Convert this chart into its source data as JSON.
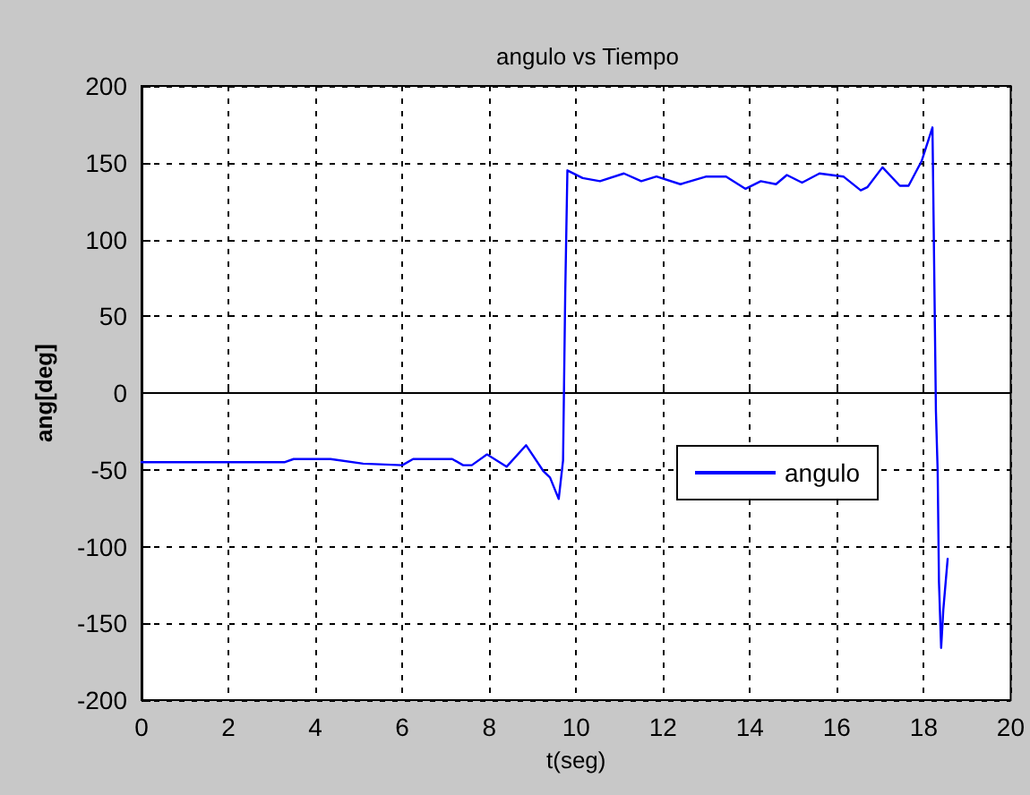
{
  "chart_data": {
    "type": "line",
    "title": "angulo vs Tiempo",
    "xlabel": "t(seg)",
    "ylabel": "ang[deg]",
    "xlim": [
      0,
      20
    ],
    "xticks": [
      0,
      2,
      4,
      6,
      8,
      10,
      12,
      14,
      16,
      18,
      20
    ],
    "ylim": [
      -200,
      200
    ],
    "yticks": [
      -200,
      -150,
      -100,
      -50,
      0,
      50,
      100,
      150,
      200
    ],
    "grid": true,
    "legend": "right",
    "line_style": "solid",
    "marker": "none",
    "series": [
      {
        "name": "angulo",
        "color": "#0000ff",
        "x": [
          0,
          3.3,
          3.5,
          4.35,
          5.1,
          6,
          6.25,
          7.15,
          7.4,
          7.6,
          7.95,
          8.4,
          8.85,
          9.25,
          9.4,
          9.6,
          9.7,
          9.75,
          9.8,
          10.15,
          10.55,
          11.1,
          11.5,
          11.85,
          12.4,
          13.0,
          13.45,
          13.9,
          14.25,
          14.6,
          14.85,
          15.2,
          15.6,
          16.15,
          16.55,
          16.7,
          17.05,
          17.45,
          17.65,
          17.95,
          18.2,
          18.22,
          18.28,
          18.32,
          18.35,
          18.4,
          18.45,
          18.55
        ],
        "values": [
          -45,
          -45,
          -43,
          -43,
          -46,
          -47,
          -43,
          -43,
          -47,
          -47,
          -40,
          -48,
          -34,
          -51,
          -55,
          -69,
          -44,
          65,
          145,
          140,
          138,
          143,
          138,
          141,
          136,
          141,
          141,
          133,
          138,
          136,
          142,
          137,
          143,
          141,
          132,
          134,
          147,
          135,
          135,
          151,
          173,
          128,
          -12,
          -51,
          -123,
          -166,
          -141,
          -108
        ]
      }
    ]
  }
}
